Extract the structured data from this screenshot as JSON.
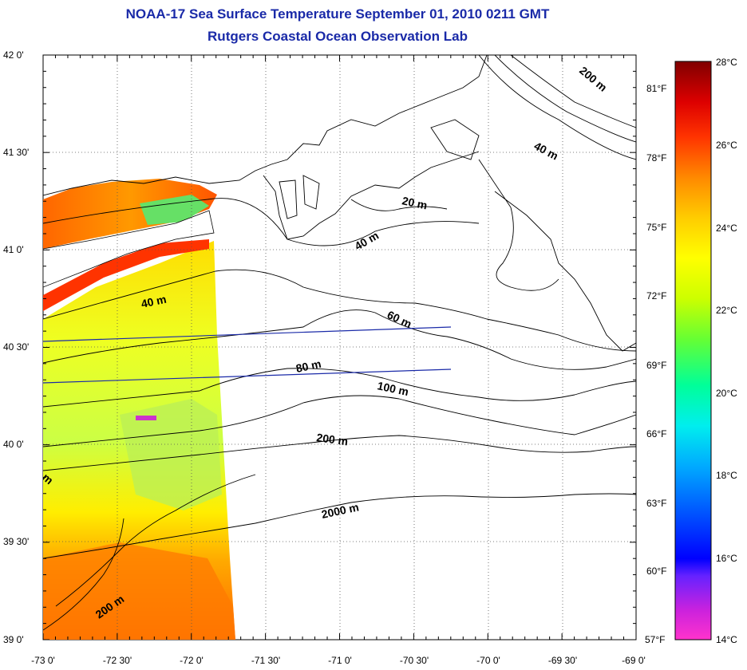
{
  "title": {
    "line1": "NOAA-17 Sea Surface Temperature September 01, 2010 0211 GMT",
    "line2": "Rutgers Coastal Ocean Observation Lab"
  },
  "map": {
    "x_ticks": [
      "-73 0'",
      "-72 30'",
      "-72 0'",
      "-71 30'",
      "-71 0'",
      "-70 30'",
      "-70 0'",
      "-69 30'",
      "-69 0'"
    ],
    "y_ticks": [
      "42 0'",
      "41 30'",
      "41 0'",
      "40 30'",
      "40 0'",
      "39 30'",
      "39 0'"
    ],
    "lon_range": [
      -73,
      -69
    ],
    "lat_range": [
      39,
      42
    ],
    "grid": "dotted",
    "depth_labels": [
      "200 m",
      "40 m",
      "20 m",
      "40 m",
      "40 m",
      "60 m",
      "80 m",
      "100 m",
      "200 m",
      "2000 m",
      "200 m",
      "m"
    ]
  },
  "colorbar": {
    "celsius_labels": [
      "28°C",
      "26°C",
      "24°C",
      "22°C",
      "20°C",
      "18°C",
      "16°C",
      "14°C"
    ],
    "fahrenheit_labels": [
      "81°F",
      "78°F",
      "75°F",
      "72°F",
      "69°F",
      "66°F",
      "63°F",
      "60°F",
      "57°F"
    ],
    "range_c": [
      14,
      28
    ],
    "colors": [
      "#ff33cc",
      "#9933ff",
      "#0000ff",
      "#0066ff",
      "#00ccff",
      "#00ffcc",
      "#66ff33",
      "#ccff00",
      "#ffff00",
      "#ffcc00",
      "#ff8800",
      "#ff3300",
      "#cc0000",
      "#800000"
    ]
  }
}
